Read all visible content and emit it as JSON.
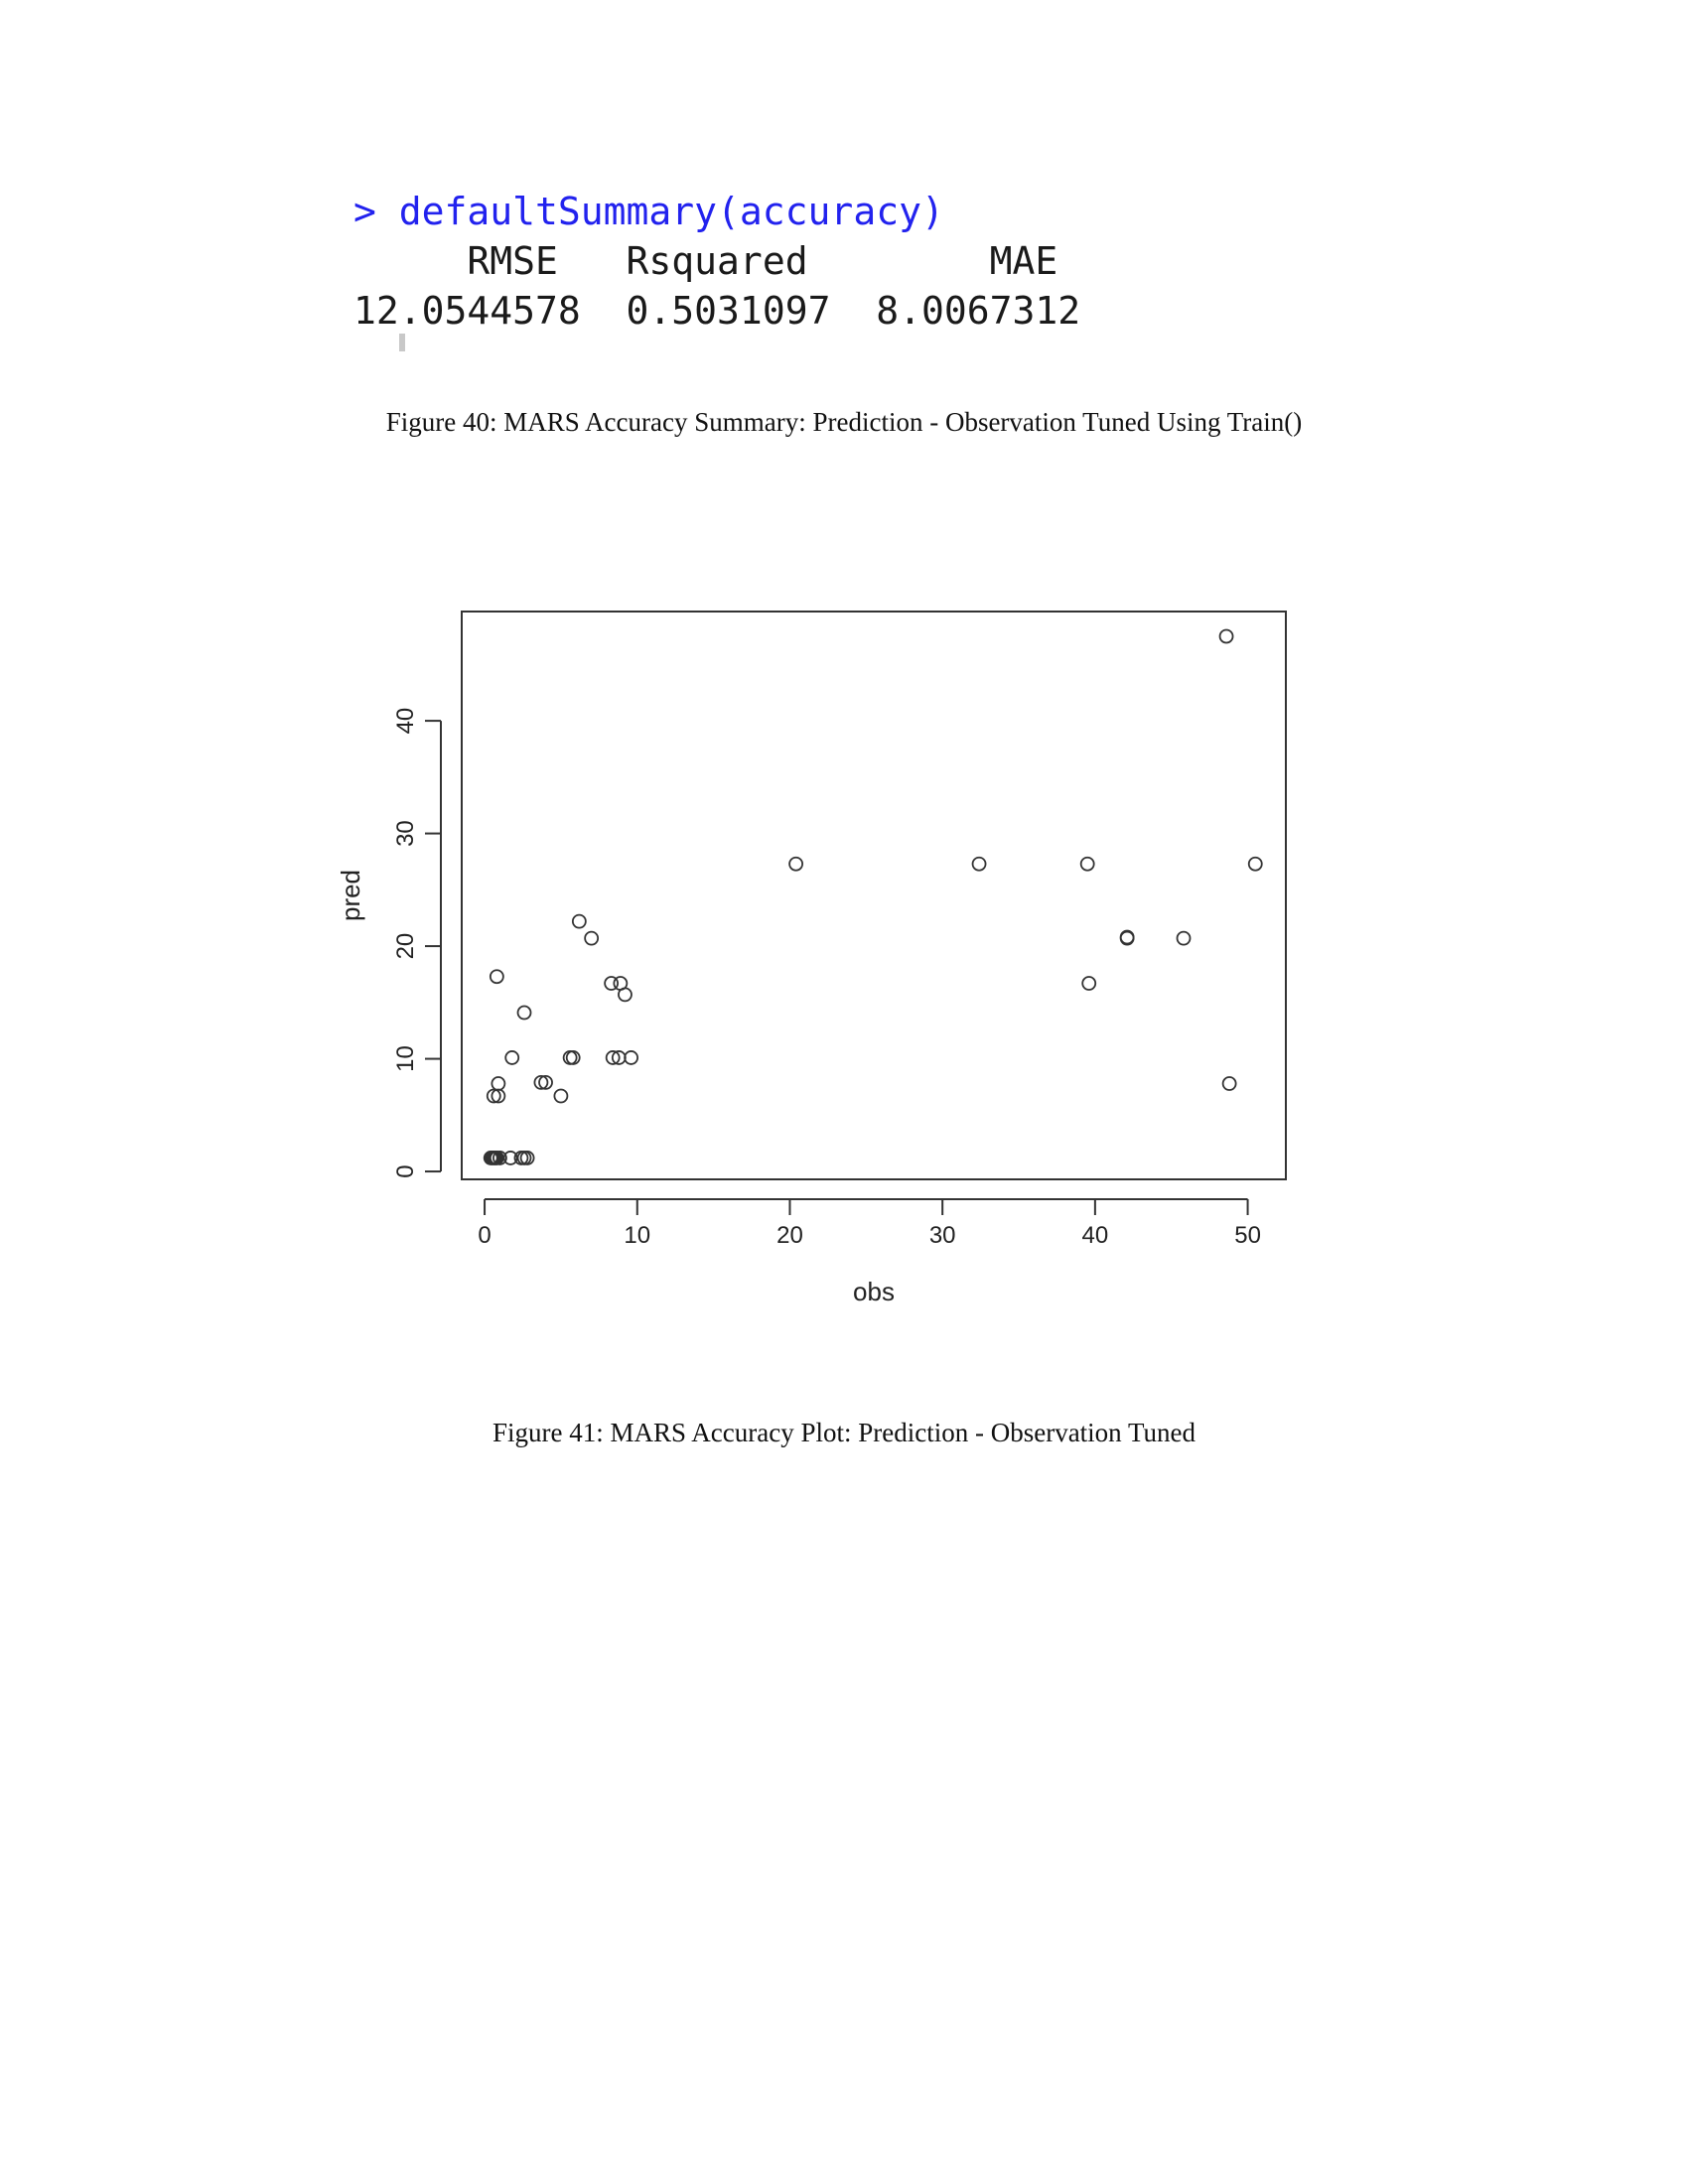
{
  "console": {
    "command": "> defaultSummary(accuracy)",
    "headers": [
      "RMSE",
      "Rsquared",
      "MAE"
    ],
    "values": [
      "12.0544578",
      "0.5031097",
      "8.0067312"
    ]
  },
  "figure40": {
    "caption": "Figure 40: MARS Accuracy Summary: Prediction - Observation Tuned Using Train()"
  },
  "figure41": {
    "caption": "Figure 41: MARS Accuracy Plot: Prediction - Observation Tuned"
  },
  "chart_data": {
    "type": "scatter",
    "title": "",
    "xlabel": "obs",
    "ylabel": "pred",
    "xlim": [
      -1.5,
      52.5
    ],
    "ylim": [
      -0.7,
      49.7
    ],
    "xticks": [
      0,
      10,
      20,
      30,
      40,
      50
    ],
    "yticks": [
      0,
      10,
      20,
      30,
      40
    ],
    "points": [
      [
        0.4,
        1.2
      ],
      [
        0.5,
        1.2
      ],
      [
        0.6,
        1.2
      ],
      [
        0.7,
        1.2
      ],
      [
        0.8,
        1.2
      ],
      [
        1.0,
        1.2
      ],
      [
        1.7,
        1.2
      ],
      [
        2.4,
        1.2
      ],
      [
        2.6,
        1.2
      ],
      [
        2.8,
        1.2
      ],
      [
        0.6,
        6.7
      ],
      [
        0.9,
        6.7
      ],
      [
        0.9,
        7.8
      ],
      [
        5.0,
        6.7
      ],
      [
        3.7,
        7.9
      ],
      [
        4.0,
        7.9
      ],
      [
        1.8,
        10.1
      ],
      [
        5.6,
        10.1
      ],
      [
        5.8,
        10.1
      ],
      [
        8.4,
        10.1
      ],
      [
        8.8,
        10.1
      ],
      [
        9.6,
        10.1
      ],
      [
        2.6,
        14.1
      ],
      [
        0.8,
        17.3
      ],
      [
        8.3,
        16.7
      ],
      [
        8.9,
        16.7
      ],
      [
        9.2,
        15.7
      ],
      [
        6.2,
        22.2
      ],
      [
        7.0,
        20.7
      ],
      [
        20.4,
        27.3
      ],
      [
        32.4,
        27.3
      ],
      [
        39.5,
        27.3
      ],
      [
        50.5,
        27.3
      ],
      [
        42.1,
        20.7
      ],
      [
        42.1,
        20.8
      ],
      [
        45.8,
        20.7
      ],
      [
        39.6,
        16.7
      ],
      [
        48.6,
        47.5
      ],
      [
        48.8,
        7.8
      ]
    ],
    "grid": false,
    "marker": "open-circle"
  }
}
